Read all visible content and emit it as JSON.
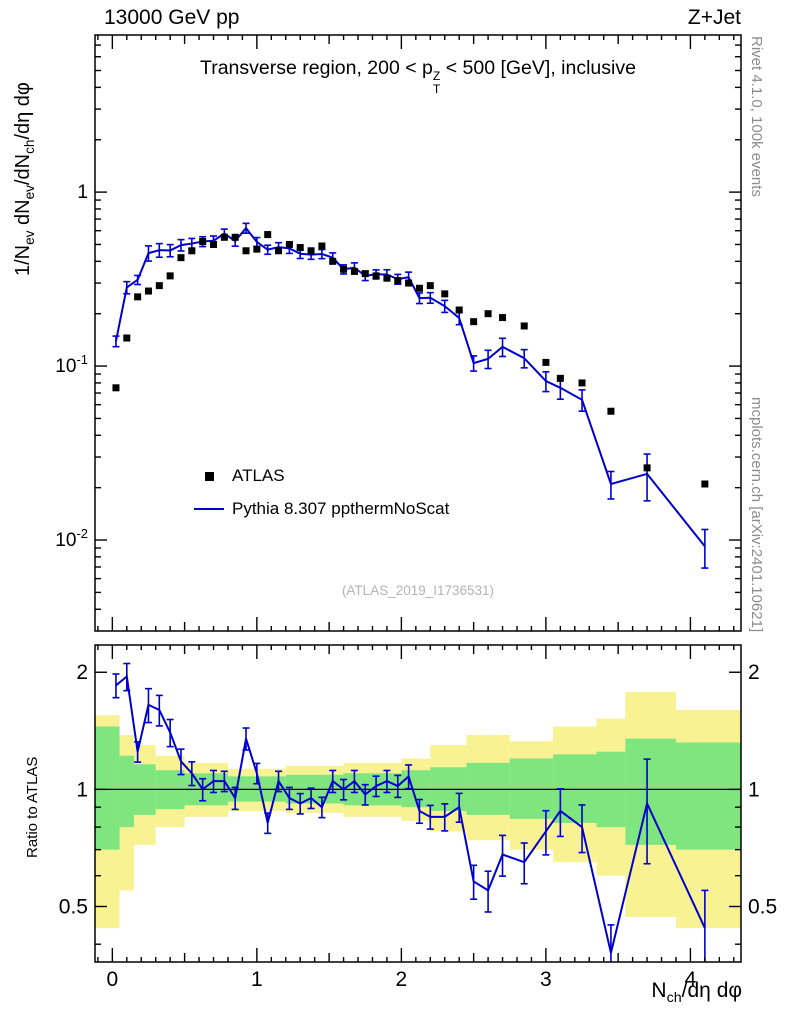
{
  "header": {
    "left": "13000 GeV pp",
    "right": "Z+Jet"
  },
  "side_notes": {
    "rivet": "Rivet 4.1.0, 100k events",
    "mcplots": "mcplots.cern.ch [arXiv:2401.10621]"
  },
  "watermark": "(ATLAS_2019_I1736531)",
  "legend": [
    {
      "label": "ATLAS",
      "type": "marker",
      "color": "#000000"
    },
    {
      "label": "Pythia 8.307 ppthermNoScat",
      "type": "line",
      "color": "#0000cc"
    }
  ],
  "chart_data": {
    "type": "line",
    "title": "Transverse region, 200 < p^{Z}_{T} < 500 [GeV], inclusive",
    "xlabel": "N_{ch}/dη dφ",
    "xlim": [
      -0.12,
      4.35
    ],
    "xticks": [
      0,
      1,
      2,
      3,
      4
    ],
    "main_panel": {
      "ylabel": "1/N_{ev} dN_{ev}/dN_{ch}/dη dφ",
      "yscale": "log",
      "ylim": [
        0.003,
        8
      ],
      "yticks": [
        {
          "value": 1,
          "label": "1"
        },
        {
          "value": 0.1,
          "label": "10^{-1}"
        },
        {
          "value": 0.01,
          "label": "10^{-2}"
        }
      ]
    },
    "ratio_panel": {
      "ylabel": "Ratio to ATLAS",
      "yscale": "log",
      "ylim": [
        0.36,
        2.35
      ],
      "yticks": [
        {
          "value": 0.5,
          "label": "0.5"
        },
        {
          "value": 1,
          "label": "1"
        },
        {
          "value": 2,
          "label": "2"
        }
      ],
      "minor_ticks": [
        0.4,
        0.6,
        0.7,
        0.8,
        0.9
      ],
      "band_colors": {
        "outer": "#f8f292",
        "inner": "#7fe57f"
      },
      "bands": [
        {
          "x0": -0.12,
          "x1": 0.05,
          "inner": [
            0.7,
            1.45
          ],
          "outer": [
            0.44,
            1.55
          ]
        },
        {
          "x0": 0.05,
          "x1": 0.15,
          "inner": [
            0.8,
            1.22
          ],
          "outer": [
            0.55,
            1.38
          ]
        },
        {
          "x0": 0.15,
          "x1": 0.3,
          "inner": [
            0.86,
            1.16
          ],
          "outer": [
            0.72,
            1.3
          ]
        },
        {
          "x0": 0.3,
          "x1": 0.5,
          "inner": [
            0.89,
            1.12
          ],
          "outer": [
            0.8,
            1.22
          ]
        },
        {
          "x0": 0.5,
          "x1": 0.8,
          "inner": [
            0.91,
            1.1
          ],
          "outer": [
            0.85,
            1.17
          ]
        },
        {
          "x0": 0.8,
          "x1": 1.2,
          "inner": [
            0.93,
            1.08
          ],
          "outer": [
            0.88,
            1.13
          ]
        },
        {
          "x0": 1.2,
          "x1": 1.6,
          "inner": [
            0.92,
            1.09
          ],
          "outer": [
            0.87,
            1.15
          ]
        },
        {
          "x0": 1.6,
          "x1": 2.0,
          "inner": [
            0.91,
            1.1
          ],
          "outer": [
            0.85,
            1.17
          ]
        },
        {
          "x0": 2.0,
          "x1": 2.2,
          "inner": [
            0.9,
            1.12
          ],
          "outer": [
            0.83,
            1.2
          ]
        },
        {
          "x0": 2.2,
          "x1": 2.45,
          "inner": [
            0.88,
            1.14
          ],
          "outer": [
            0.78,
            1.3
          ]
        },
        {
          "x0": 2.45,
          "x1": 2.75,
          "inner": [
            0.86,
            1.17
          ],
          "outer": [
            0.74,
            1.38
          ]
        },
        {
          "x0": 2.75,
          "x1": 3.05,
          "inner": [
            0.84,
            1.2
          ],
          "outer": [
            0.7,
            1.33
          ]
        },
        {
          "x0": 3.05,
          "x1": 3.35,
          "inner": [
            0.82,
            1.23
          ],
          "outer": [
            0.65,
            1.45
          ]
        },
        {
          "x0": 3.35,
          "x1": 3.55,
          "inner": [
            0.8,
            1.25
          ],
          "outer": [
            0.6,
            1.52
          ]
        },
        {
          "x0": 3.55,
          "x1": 3.9,
          "inner": [
            0.72,
            1.35
          ],
          "outer": [
            0.47,
            1.78
          ]
        },
        {
          "x0": 3.9,
          "x1": 4.35,
          "inner": [
            0.7,
            1.32
          ],
          "outer": [
            0.44,
            1.6
          ]
        }
      ]
    },
    "series": {
      "x": [
        0.025,
        0.1,
        0.175,
        0.25,
        0.325,
        0.4,
        0.475,
        0.55,
        0.625,
        0.7,
        0.775,
        0.85,
        0.925,
        1.0,
        1.075,
        1.15,
        1.225,
        1.3,
        1.375,
        1.45,
        1.525,
        1.6,
        1.675,
        1.75,
        1.825,
        1.9,
        1.975,
        2.05,
        2.125,
        2.2,
        2.3,
        2.4,
        2.5,
        2.6,
        2.7,
        2.85,
        3.0,
        3.1,
        3.25,
        3.45,
        3.7,
        4.1
      ],
      "atlas": {
        "label": "ATLAS",
        "marker": "square",
        "color": "#000000",
        "y": [
          0.075,
          0.145,
          0.25,
          0.27,
          0.29,
          0.33,
          0.42,
          0.46,
          0.52,
          0.5,
          0.55,
          0.55,
          0.46,
          0.47,
          0.57,
          0.46,
          0.5,
          0.48,
          0.46,
          0.49,
          0.4,
          0.36,
          0.35,
          0.34,
          0.33,
          0.32,
          0.31,
          0.3,
          0.28,
          0.29,
          0.26,
          0.21,
          0.18,
          0.2,
          0.19,
          0.17,
          0.105,
          0.085,
          0.08,
          0.055,
          0.026,
          0.021
        ]
      },
      "pythia": {
        "label": "Pythia 8.307 ppthermNoScat",
        "color": "#0000cc",
        "y": [
          0.139,
          0.283,
          0.313,
          0.446,
          0.464,
          0.462,
          0.496,
          0.506,
          0.52,
          0.525,
          0.578,
          0.523,
          0.621,
          0.517,
          0.467,
          0.483,
          0.475,
          0.442,
          0.437,
          0.441,
          0.42,
          0.36,
          0.368,
          0.33,
          0.337,
          0.336,
          0.316,
          0.324,
          0.246,
          0.247,
          0.221,
          0.189,
          0.104,
          0.11,
          0.129,
          0.111,
          0.082,
          0.075,
          0.064,
          0.021,
          0.024,
          0.0092
        ],
        "err_rel": [
          0.07,
          0.08,
          0.06,
          0.1,
          0.09,
          0.08,
          0.075,
          0.07,
          0.065,
          0.065,
          0.06,
          0.065,
          0.065,
          0.06,
          0.06,
          0.06,
          0.065,
          0.06,
          0.06,
          0.06,
          0.065,
          0.06,
          0.065,
          0.06,
          0.06,
          0.065,
          0.065,
          0.07,
          0.07,
          0.07,
          0.08,
          0.085,
          0.1,
          0.12,
          0.12,
          0.12,
          0.13,
          0.14,
          0.14,
          0.18,
          0.3,
          0.25
        ],
        "ratio": [
          1.85,
          1.95,
          1.25,
          1.65,
          1.6,
          1.4,
          1.18,
          1.1,
          1.0,
          1.05,
          1.05,
          0.95,
          1.35,
          1.1,
          0.82,
          1.05,
          0.95,
          0.92,
          0.95,
          0.9,
          1.05,
          1.0,
          1.05,
          0.97,
          1.02,
          1.05,
          1.02,
          1.08,
          0.88,
          0.85,
          0.85,
          0.9,
          0.58,
          0.55,
          0.68,
          0.65,
          0.78,
          0.88,
          0.8,
          0.38,
          0.92,
          0.44
        ]
      }
    }
  }
}
